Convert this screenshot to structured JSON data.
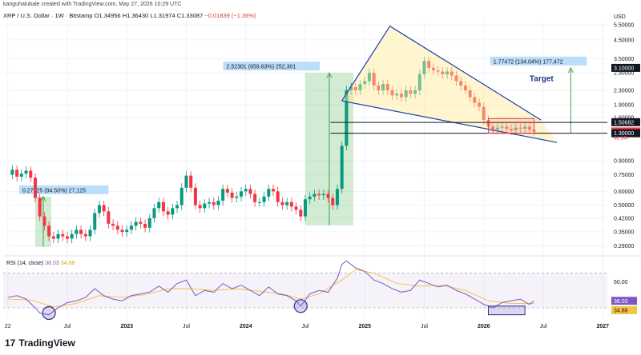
{
  "header": {
    "author_line": "kanguhalubale created with TradingView.com, May 27, 2026 10:29 UTC",
    "symbol": "XRP / U.S. Dollar · 1W · Bitstamp",
    "open": "O1.34956",
    "high": "H1.36430",
    "low": "L1.31974",
    "close": "C1.33087",
    "change": "−0.01839 (−1.36%)"
  },
  "currency_label": "USD",
  "footer": {
    "brand": "TradingView",
    "logo_glyph": "17"
  },
  "colors": {
    "up": "#089981",
    "down": "#f23645",
    "wedge": "#1e40af",
    "rsi": "#7e57c2",
    "rsi_ma": "#f5c542"
  },
  "chart_data": {
    "type": "candlestick",
    "scale": "log",
    "ylim": [
      0.26,
      5.8
    ],
    "yticks": [
      "5.50000",
      "4.50000",
      "3.50000",
      "2.90000",
      "2.30000",
      "1.90000",
      "1.60000",
      "0.90000",
      "0.75000",
      "0.60000",
      "0.50000",
      "0.42000",
      "0.35000",
      "0.29000"
    ],
    "ytick_values": [
      5.5,
      4.5,
      3.5,
      2.9,
      2.3,
      1.9,
      1.6,
      0.9,
      0.75,
      0.6,
      0.5,
      0.42,
      0.35,
      0.29
    ],
    "xticks": [
      "22",
      "Jul",
      "2023",
      "Jul",
      "2024",
      "Jul",
      "2025",
      "Jul",
      "2026",
      "Jul",
      "2027"
    ],
    "xtick_weeks": [
      0,
      26,
      52,
      78,
      104,
      130,
      156,
      182,
      208,
      234,
      260
    ],
    "price_labels": [
      {
        "value": 3.1,
        "text": "3.10000",
        "style": "dark"
      },
      {
        "value": 1.50682,
        "text": "1.50682",
        "style": "dark"
      },
      {
        "value": 1.33087,
        "text": "1.33087",
        "style": "red"
      },
      {
        "value": 1.3,
        "text": "1.30000",
        "style": "dark"
      }
    ],
    "countdown": "4d 14h",
    "annotations": [
      {
        "text": "0.27125 (94.50%) 27,125",
        "weeks": [
          12,
          19
        ],
        "range": [
          0.2875,
          0.56
        ]
      },
      {
        "text": "2.52301 (659.63%) 252,301",
        "weeks": [
          130,
          151
        ],
        "range": [
          0.382,
          2.9
        ]
      },
      {
        "text": "1.77472 (134.04%) 177,472",
        "weeks": [
          246,
          246
        ],
        "range": [
          1.3,
          3.1
        ]
      }
    ],
    "target_label": "Target",
    "wedge": {
      "upper": [
        [
          146,
          2.0
        ],
        [
          167,
          5.4
        ],
        [
          233,
          1.55
        ]
      ],
      "lower": [
        [
          146,
          2.0
        ],
        [
          240,
          1.15
        ]
      ]
    },
    "horizontal_levels": [
      1.5,
      1.3
    ],
    "consolidation_box": {
      "weeks": [
        210,
        230
      ],
      "range": [
        1.3,
        1.58
      ]
    },
    "series": [
      {
        "name": "XRP / U.S. Dollar",
        "points": [
          [
            0,
            0.75
          ],
          [
            2,
            0.8
          ],
          [
            4,
            0.73
          ],
          [
            6,
            0.76
          ],
          [
            8,
            0.79
          ],
          [
            10,
            0.72
          ],
          [
            12,
            0.55
          ],
          [
            14,
            0.43
          ],
          [
            16,
            0.38
          ],
          [
            18,
            0.33
          ],
          [
            20,
            0.32
          ],
          [
            22,
            0.34
          ],
          [
            24,
            0.33
          ],
          [
            26,
            0.32
          ],
          [
            28,
            0.34
          ],
          [
            30,
            0.36
          ],
          [
            32,
            0.34
          ],
          [
            34,
            0.33
          ],
          [
            36,
            0.36
          ],
          [
            38,
            0.45
          ],
          [
            40,
            0.5
          ],
          [
            42,
            0.46
          ],
          [
            44,
            0.39
          ],
          [
            46,
            0.38
          ],
          [
            48,
            0.36
          ],
          [
            50,
            0.35
          ],
          [
            52,
            0.36
          ],
          [
            54,
            0.38
          ],
          [
            56,
            0.4
          ],
          [
            58,
            0.39
          ],
          [
            60,
            0.37
          ],
          [
            62,
            0.42
          ],
          [
            64,
            0.48
          ],
          [
            66,
            0.52
          ],
          [
            68,
            0.46
          ],
          [
            70,
            0.44
          ],
          [
            72,
            0.48
          ],
          [
            74,
            0.5
          ],
          [
            76,
            0.63
          ],
          [
            78,
            0.74
          ],
          [
            80,
            0.63
          ],
          [
            82,
            0.5
          ],
          [
            84,
            0.48
          ],
          [
            86,
            0.51
          ],
          [
            88,
            0.52
          ],
          [
            90,
            0.5
          ],
          [
            92,
            0.53
          ],
          [
            94,
            0.62
          ],
          [
            96,
            0.59
          ],
          [
            98,
            0.55
          ],
          [
            100,
            0.56
          ],
          [
            102,
            0.6
          ],
          [
            104,
            0.62
          ],
          [
            106,
            0.58
          ],
          [
            108,
            0.52
          ],
          [
            110,
            0.52
          ],
          [
            112,
            0.56
          ],
          [
            114,
            0.62
          ],
          [
            116,
            0.6
          ],
          [
            118,
            0.52
          ],
          [
            120,
            0.5
          ],
          [
            122,
            0.52
          ],
          [
            124,
            0.49
          ],
          [
            126,
            0.47
          ],
          [
            128,
            0.43
          ],
          [
            130,
            0.54
          ],
          [
            132,
            0.56
          ],
          [
            134,
            0.58
          ],
          [
            136,
            0.57
          ],
          [
            138,
            0.58
          ],
          [
            140,
            0.55
          ],
          [
            142,
            0.5
          ],
          [
            144,
            0.62
          ],
          [
            146,
            1.1
          ],
          [
            148,
            2.3
          ],
          [
            150,
            2.4
          ],
          [
            152,
            2.3
          ],
          [
            154,
            2.5
          ],
          [
            156,
            2.6
          ],
          [
            158,
            2.9
          ],
          [
            160,
            2.45
          ],
          [
            162,
            2.3
          ],
          [
            164,
            2.5
          ],
          [
            166,
            2.3
          ],
          [
            168,
            2.15
          ],
          [
            170,
            2.2
          ],
          [
            172,
            2.1
          ],
          [
            174,
            2.3
          ],
          [
            176,
            2.2
          ],
          [
            178,
            2.3
          ],
          [
            180,
            2.85
          ],
          [
            182,
            3.4
          ],
          [
            184,
            3.1
          ],
          [
            186,
            3.0
          ],
          [
            188,
            2.95
          ],
          [
            190,
            2.85
          ],
          [
            192,
            2.95
          ],
          [
            194,
            2.8
          ],
          [
            196,
            2.6
          ],
          [
            198,
            2.45
          ],
          [
            200,
            2.3
          ],
          [
            202,
            2.1
          ],
          [
            204,
            1.95
          ],
          [
            206,
            1.85
          ],
          [
            208,
            1.55
          ],
          [
            210,
            1.42
          ],
          [
            212,
            1.37
          ],
          [
            214,
            1.4
          ],
          [
            216,
            1.42
          ],
          [
            218,
            1.38
          ],
          [
            220,
            1.35
          ],
          [
            222,
            1.4
          ],
          [
            224,
            1.38
          ],
          [
            226,
            1.42
          ],
          [
            228,
            1.36
          ],
          [
            230,
            1.33
          ]
        ]
      }
    ],
    "rsi": {
      "label": "RSI (14, close)",
      "value": "38.03",
      "ma_value": "34.88",
      "ylim": [
        18,
        88
      ],
      "yticks": [
        60,
        40
      ],
      "band": [
        30,
        70
      ],
      "points": [
        [
          0,
          42
        ],
        [
          4,
          44
        ],
        [
          8,
          40
        ],
        [
          12,
          30
        ],
        [
          14,
          24
        ],
        [
          18,
          22
        ],
        [
          22,
          30
        ],
        [
          26,
          36
        ],
        [
          30,
          38
        ],
        [
          34,
          42
        ],
        [
          38,
          52
        ],
        [
          42,
          44
        ],
        [
          46,
          40
        ],
        [
          50,
          38
        ],
        [
          54,
          44
        ],
        [
          58,
          46
        ],
        [
          62,
          48
        ],
        [
          66,
          55
        ],
        [
          70,
          48
        ],
        [
          74,
          58
        ],
        [
          78,
          62
        ],
        [
          82,
          44
        ],
        [
          86,
          50
        ],
        [
          90,
          48
        ],
        [
          94,
          58
        ],
        [
          98,
          52
        ],
        [
          102,
          56
        ],
        [
          106,
          50
        ],
        [
          110,
          44
        ],
        [
          114,
          54
        ],
        [
          118,
          46
        ],
        [
          122,
          44
        ],
        [
          126,
          38
        ],
        [
          128,
          32
        ],
        [
          132,
          46
        ],
        [
          136,
          50
        ],
        [
          140,
          48
        ],
        [
          144,
          64
        ],
        [
          146,
          80
        ],
        [
          148,
          84
        ],
        [
          150,
          80
        ],
        [
          152,
          76
        ],
        [
          156,
          72
        ],
        [
          160,
          62
        ],
        [
          164,
          58
        ],
        [
          168,
          52
        ],
        [
          172,
          48
        ],
        [
          176,
          50
        ],
        [
          180,
          62
        ],
        [
          184,
          58
        ],
        [
          188,
          54
        ],
        [
          192,
          56
        ],
        [
          196,
          50
        ],
        [
          200,
          46
        ],
        [
          204,
          40
        ],
        [
          208,
          34
        ],
        [
          212,
          30
        ],
        [
          216,
          36
        ],
        [
          220,
          38
        ],
        [
          224,
          40
        ],
        [
          228,
          34
        ],
        [
          230,
          38
        ]
      ],
      "ma_points": [
        [
          0,
          40
        ],
        [
          10,
          39
        ],
        [
          20,
          31
        ],
        [
          30,
          35
        ],
        [
          40,
          44
        ],
        [
          50,
          42
        ],
        [
          60,
          45
        ],
        [
          70,
          52
        ],
        [
          80,
          52
        ],
        [
          90,
          50
        ],
        [
          100,
          52
        ],
        [
          110,
          49
        ],
        [
          120,
          46
        ],
        [
          128,
          40
        ],
        [
          136,
          46
        ],
        [
          146,
          62
        ],
        [
          152,
          74
        ],
        [
          160,
          70
        ],
        [
          170,
          58
        ],
        [
          180,
          55
        ],
        [
          190,
          56
        ],
        [
          200,
          50
        ],
        [
          210,
          38
        ],
        [
          220,
          35
        ],
        [
          230,
          35
        ]
      ]
    }
  }
}
